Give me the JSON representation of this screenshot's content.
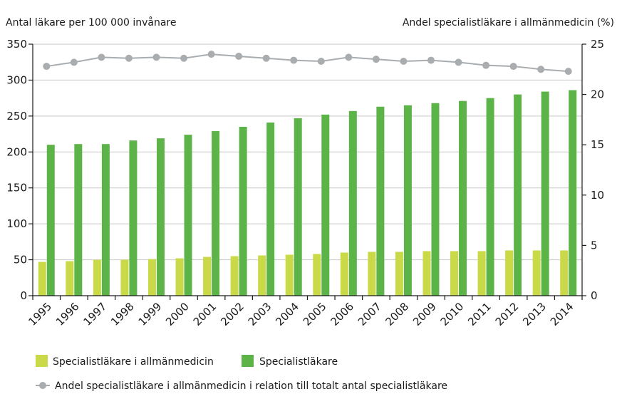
{
  "chart_data": {
    "type": "bar",
    "left_axis_title": "Antal läkare per 100 000 invånare",
    "right_axis_title": "Andel specialistläkare i allmänmedicin (%)",
    "categories": [
      "1995",
      "1996",
      "1997",
      "1998",
      "1999",
      "2000",
      "2001",
      "2002",
      "2003",
      "2004",
      "2005",
      "2006",
      "2007",
      "2008",
      "2009",
      "2010",
      "2011",
      "2012",
      "2013",
      "2014"
    ],
    "y_left": {
      "min": 0,
      "max": 350,
      "ticks": [
        0,
        50,
        100,
        150,
        200,
        250,
        300,
        350
      ]
    },
    "y_right": {
      "min": 0,
      "max": 25,
      "ticks": [
        0,
        5,
        10,
        15,
        20,
        25
      ]
    },
    "series": [
      {
        "name": "Specialistläkare i allmänmedicin",
        "type": "bar",
        "axis": "left",
        "color": "#c9d947",
        "values": [
          47,
          48,
          50,
          50,
          51,
          52,
          54,
          55,
          56,
          57,
          58,
          60,
          61,
          61,
          62,
          62,
          62,
          63,
          63,
          63
        ]
      },
      {
        "name": "Specialistläkare",
        "type": "bar",
        "axis": "left",
        "color": "#5cb449",
        "values": [
          210,
          211,
          211,
          216,
          219,
          224,
          229,
          235,
          241,
          247,
          252,
          257,
          263,
          265,
          268,
          271,
          275,
          280,
          284,
          286
        ]
      },
      {
        "name": "Andel specialistläkare i allmänmedicin i relation till totalt antal specialistläkare",
        "type": "line",
        "axis": "right",
        "color": "#a9adb0",
        "values": [
          22.8,
          23.2,
          23.7,
          23.6,
          23.7,
          23.6,
          24.0,
          23.8,
          23.6,
          23.4,
          23.3,
          23.7,
          23.5,
          23.3,
          23.4,
          23.2,
          22.9,
          22.8,
          22.5,
          22.3
        ]
      }
    ]
  }
}
